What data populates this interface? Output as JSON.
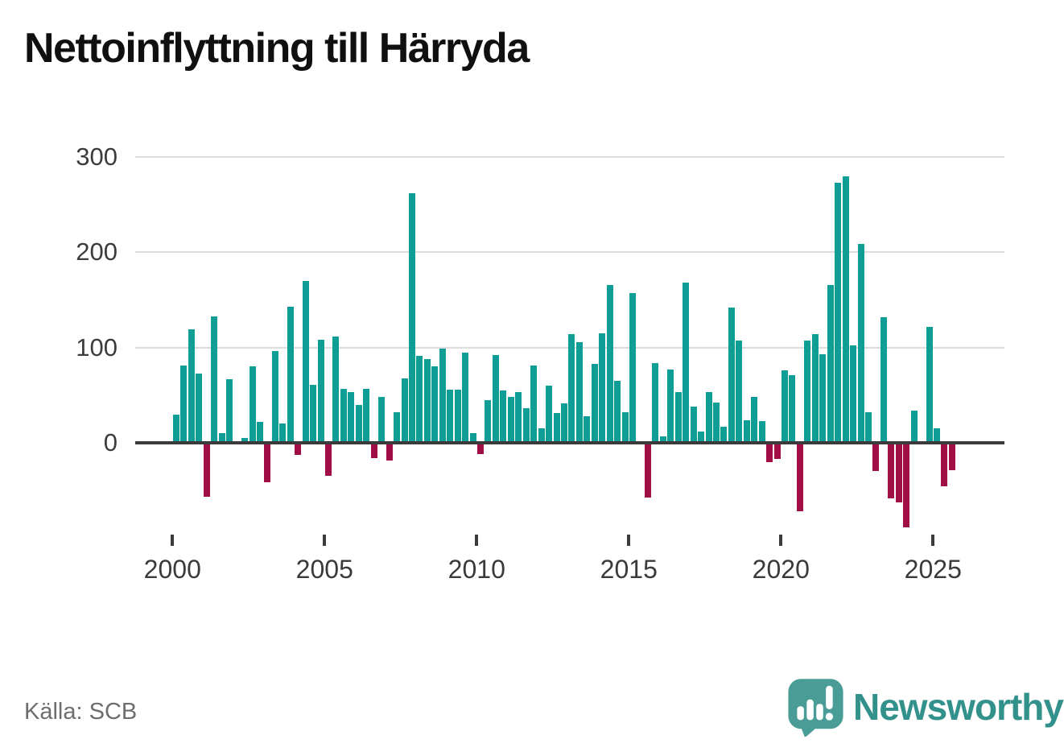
{
  "title": "Nettoinflyttning till Härryda",
  "source_note": "Källa: SCB",
  "logo": {
    "wordmark": "Newsworthy",
    "icon": "newsworthy-speech-bubble-chart-icon"
  },
  "colors": {
    "positive_bar": "#0f9e96",
    "negative_bar": "#a10d45",
    "gridline": "#dcdcdc",
    "zero_line": "#3b3b3b",
    "axis_text": "#3a3a3a",
    "source_text": "#6e6e6e",
    "logo_teal": "#4a9d97",
    "wordmark_teal": "#33918b"
  },
  "chart_data": {
    "type": "bar",
    "title": "Nettoinflyttning till Härryda",
    "frequency": "quarterly",
    "start_period": "2000-Q1",
    "end_period": "2025-Q3",
    "xlabel": "",
    "ylabel": "",
    "grid": "horizontal",
    "legend": "none",
    "y_ticks": [
      0,
      100,
      200,
      300
    ],
    "y_tick_labels": [
      "0",
      "100",
      "200",
      "300"
    ],
    "x_tick_years": [
      2000,
      2005,
      2010,
      2015,
      2020,
      2025
    ],
    "x_tick_labels": [
      "2000",
      "2005",
      "2010",
      "2015",
      "2020",
      "2025"
    ],
    "ylim": [
      -100,
      310
    ],
    "values": [
      30,
      81,
      119,
      73,
      -55,
      133,
      10,
      67,
      0,
      5,
      80,
      22,
      -40,
      96,
      20,
      143,
      -11,
      170,
      61,
      108,
      -33,
      112,
      57,
      53,
      40,
      57,
      -14,
      48,
      -17,
      32,
      68,
      262,
      91,
      88,
      80,
      99,
      56,
      56,
      95,
      10,
      -10,
      45,
      92,
      55,
      48,
      53,
      36,
      81,
      15,
      60,
      31,
      41,
      114,
      106,
      28,
      83,
      115,
      166,
      65,
      32,
      157,
      2,
      -56,
      84,
      7,
      77,
      53,
      168,
      38,
      12,
      53,
      42,
      17,
      142,
      107,
      24,
      48,
      23,
      -19,
      -15,
      76,
      71,
      -70,
      107,
      114,
      93,
      166,
      273,
      280,
      102,
      209,
      32,
      -28,
      132,
      -57,
      -61,
      -87,
      34,
      0,
      122,
      15,
      -44,
      -27
    ]
  }
}
